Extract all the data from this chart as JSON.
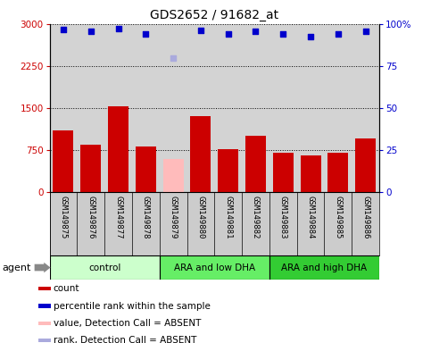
{
  "title": "GDS2652 / 91682_at",
  "samples": [
    "GSM149875",
    "GSM149876",
    "GSM149877",
    "GSM149878",
    "GSM149879",
    "GSM149880",
    "GSM149881",
    "GSM149882",
    "GSM149883",
    "GSM149884",
    "GSM149885",
    "GSM149886"
  ],
  "counts": [
    1100,
    850,
    1530,
    820,
    null,
    1350,
    760,
    1000,
    700,
    660,
    700,
    950
  ],
  "absent_count": [
    null,
    null,
    null,
    null,
    590,
    null,
    null,
    null,
    null,
    null,
    null,
    null
  ],
  "percentile_ranks": [
    97.0,
    95.7,
    97.2,
    94.0,
    null,
    96.3,
    94.0,
    95.7,
    94.0,
    92.7,
    94.0,
    95.7
  ],
  "absent_rank": [
    null,
    null,
    null,
    null,
    80.0,
    null,
    null,
    null,
    null,
    null,
    null,
    null
  ],
  "groups": [
    {
      "label": "control",
      "start": 0,
      "end": 4,
      "color": "#ccffcc"
    },
    {
      "label": "ARA and low DHA",
      "start": 4,
      "end": 8,
      "color": "#66ee66"
    },
    {
      "label": "ARA and high DHA",
      "start": 8,
      "end": 12,
      "color": "#33cc33"
    }
  ],
  "ylim_left": [
    0,
    3000
  ],
  "ylim_right": [
    0,
    100
  ],
  "yticks_left": [
    0,
    750,
    1500,
    2250,
    3000
  ],
  "yticks_right": [
    0,
    25,
    50,
    75,
    100
  ],
  "bar_color": "#cc0000",
  "absent_bar_color": "#ffbbbb",
  "rank_color": "#0000cc",
  "absent_rank_color": "#aaaadd",
  "plot_bg_color": "#d3d3d3",
  "label_bg_color": "#cccccc",
  "fig_bg_color": "#ffffff",
  "agent_label": "agent",
  "legend_items": [
    {
      "color": "#cc0000",
      "label": "count"
    },
    {
      "color": "#0000cc",
      "label": "percentile rank within the sample"
    },
    {
      "color": "#ffbbbb",
      "label": "value, Detection Call = ABSENT"
    },
    {
      "color": "#aaaadd",
      "label": "rank, Detection Call = ABSENT"
    }
  ]
}
